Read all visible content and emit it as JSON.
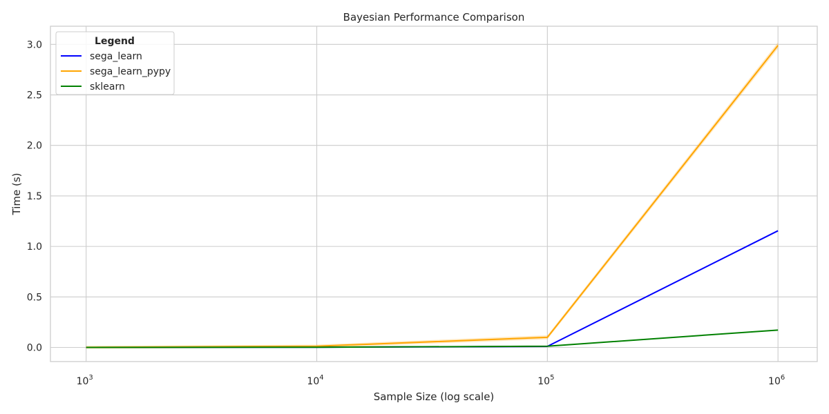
{
  "chart_data": {
    "type": "line",
    "title": "Bayesian Performance Comparison",
    "xlabel": "Sample Size (log scale)",
    "ylabel": "Time (s)",
    "xscale": "log",
    "xlim": [
      700,
      1480000
    ],
    "ylim": [
      -0.14,
      3.18
    ],
    "x": [
      1000,
      10000,
      100000,
      1000000
    ],
    "x_ticks": [
      {
        "value": 1000,
        "base": "10",
        "exp": "3"
      },
      {
        "value": 10000,
        "base": "10",
        "exp": "4"
      },
      {
        "value": 100000,
        "base": "10",
        "exp": "5"
      },
      {
        "value": 1000000,
        "base": "10",
        "exp": "6"
      }
    ],
    "y_ticks": [
      {
        "value": 0.0,
        "label": "0.0"
      },
      {
        "value": 0.5,
        "label": "0.5"
      },
      {
        "value": 1.0,
        "label": "1.0"
      },
      {
        "value": 1.5,
        "label": "1.5"
      },
      {
        "value": 2.0,
        "label": "2.0"
      },
      {
        "value": 2.5,
        "label": "2.5"
      },
      {
        "value": 3.0,
        "label": "3.0"
      }
    ],
    "grid": true,
    "legend": {
      "title": "Legend",
      "placement": "top-left"
    },
    "series": [
      {
        "name": "sega_learn",
        "color": "#0000ff",
        "values": [
          0.0,
          0.002,
          0.01,
          1.155
        ]
      },
      {
        "name": "sega_learn_pypy",
        "color": "#ffa500",
        "values": [
          0.001,
          0.012,
          0.1,
          2.99
        ],
        "band": [
          0.015,
          0.015,
          0.02,
          0.03
        ]
      },
      {
        "name": "sklearn",
        "color": "#008000",
        "values": [
          0.0,
          0.002,
          0.012,
          0.172
        ]
      }
    ]
  }
}
